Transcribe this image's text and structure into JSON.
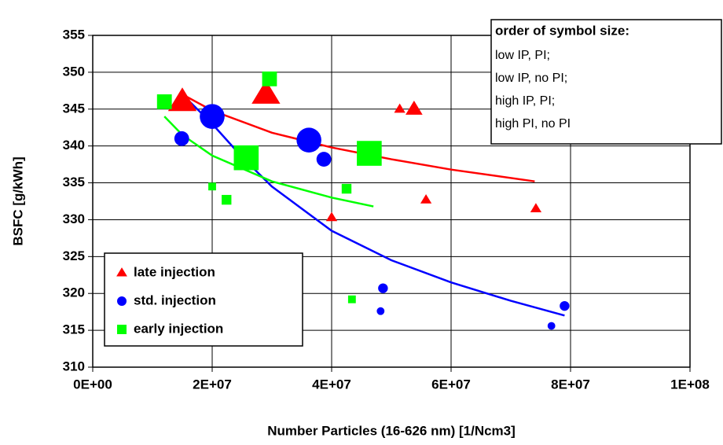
{
  "chart_data": {
    "type": "scatter",
    "xlabel": "Number Particles (16-626 nm)  [1/Ncm3]",
    "ylabel": "BSFC [g/kWh]",
    "xlim": [
      0,
      100000000
    ],
    "ylim": [
      310,
      355
    ],
    "xticks": [
      {
        "value": 0,
        "label": "0E+00"
      },
      {
        "value": 20000000,
        "label": "2E+07"
      },
      {
        "value": 40000000,
        "label": "4E+07"
      },
      {
        "value": 60000000,
        "label": "6E+07"
      },
      {
        "value": 80000000,
        "label": "8E+07"
      },
      {
        "value": 100000000,
        "label": "1E+08"
      }
    ],
    "yticks": [
      310,
      315,
      320,
      325,
      330,
      335,
      340,
      345,
      350,
      355
    ],
    "grid": true,
    "legend": "lower left",
    "annotation": {
      "title": "order of symbol size:",
      "lines": [
        "low IP, PI;",
        "low IP, no PI;",
        "high IP, PI;",
        "high PI, no PI"
      ]
    },
    "series": [
      {
        "name": "late injection",
        "color": "#ff0000",
        "marker": "triangle",
        "x": [
          15000000,
          19500000,
          29000000,
          53800000,
          51400000,
          40000000,
          55800000,
          74200000
        ],
        "values": [
          346,
          344,
          347,
          345,
          345,
          330.3,
          332.7,
          331.5
        ],
        "sizes": [
          4,
          2,
          4,
          2,
          1,
          1,
          1,
          1
        ],
        "trend": {
          "x": [
            15000000,
            20000000,
            30000000,
            40000000,
            50000000,
            60000000,
            74000000
          ],
          "y": [
            347,
            344.8,
            341.8,
            339.8,
            338.2,
            336.8,
            335.2
          ]
        }
      },
      {
        "name": "std. injection",
        "color": "#0000ff",
        "marker": "circle",
        "x": [
          14900000,
          20000000,
          36200000,
          38700000,
          48600000,
          48200000,
          79000000,
          76800000
        ],
        "values": [
          341,
          344,
          340.8,
          338.2,
          320.7,
          317.6,
          318.3,
          315.6
        ],
        "sizes": [
          2,
          4,
          4,
          2,
          1,
          0.6,
          1,
          0.6
        ],
        "trend": {
          "x": [
            15000000,
            20000000,
            25000000,
            30000000,
            40000000,
            50000000,
            60000000,
            70000000,
            79000000
          ],
          "y": [
            347,
            343,
            338.5,
            334.5,
            328.5,
            324.5,
            321.5,
            319,
            317
          ]
        }
      },
      {
        "name": "early injection",
        "color": "#00ff00",
        "marker": "square",
        "x": [
          12000000,
          29600000,
          25700000,
          46300000,
          20000000,
          22400000,
          42500000,
          43400000
        ],
        "values": [
          346,
          349.1,
          338.4,
          339,
          334.5,
          332.7,
          334.2,
          319.2
        ],
        "sizes": [
          2,
          2,
          4,
          4,
          0.6,
          1,
          1,
          0.6
        ],
        "trend": {
          "x": [
            12000000,
            15000000,
            20000000,
            30000000,
            40000000,
            47000000
          ],
          "y": [
            344,
            341.5,
            338.7,
            335.2,
            333,
            331.8
          ]
        }
      }
    ]
  }
}
